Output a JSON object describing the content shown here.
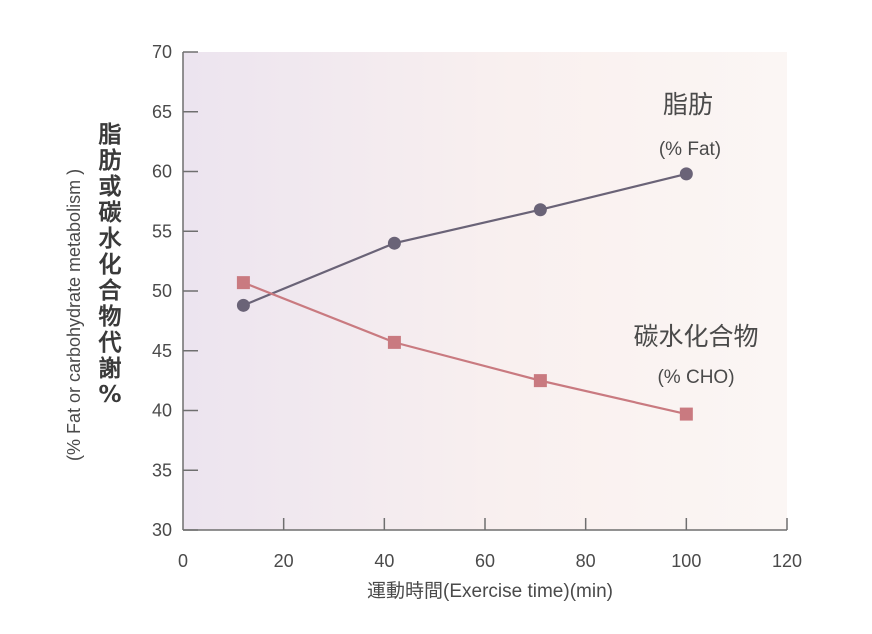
{
  "chart_data": {
    "type": "line",
    "x": [
      12,
      42,
      71,
      100
    ],
    "series": [
      {
        "name": "fat",
        "label": "脂肪",
        "sublabel": "(% Fat)",
        "values": [
          48.8,
          54.0,
          56.8,
          59.8
        ],
        "color": "#6a6377",
        "marker": "circle"
      },
      {
        "name": "cho",
        "label": "碳水化合物",
        "sublabel": "(% CHO)",
        "values": [
          50.7,
          45.7,
          42.5,
          39.7
        ],
        "color": "#c97a80",
        "marker": "square"
      }
    ],
    "xlim": [
      0,
      120
    ],
    "ylim": [
      30,
      70
    ],
    "xticks": [
      0,
      20,
      40,
      60,
      80,
      100,
      120
    ],
    "yticks": [
      30,
      35,
      40,
      45,
      50,
      55,
      60,
      65,
      70
    ],
    "xlabel": "運動時間(Exercise time)(min)",
    "ylabel_en": "(% Fat or carbohydrate metabolism )",
    "ylabel_cjk": "脂肪或碳水化合物代謝%",
    "legend": "inline-right"
  },
  "colors": {
    "axis": "#6f6f6f",
    "bg_left": "#ece4ef",
    "bg_right": "#fbf6f4"
  }
}
